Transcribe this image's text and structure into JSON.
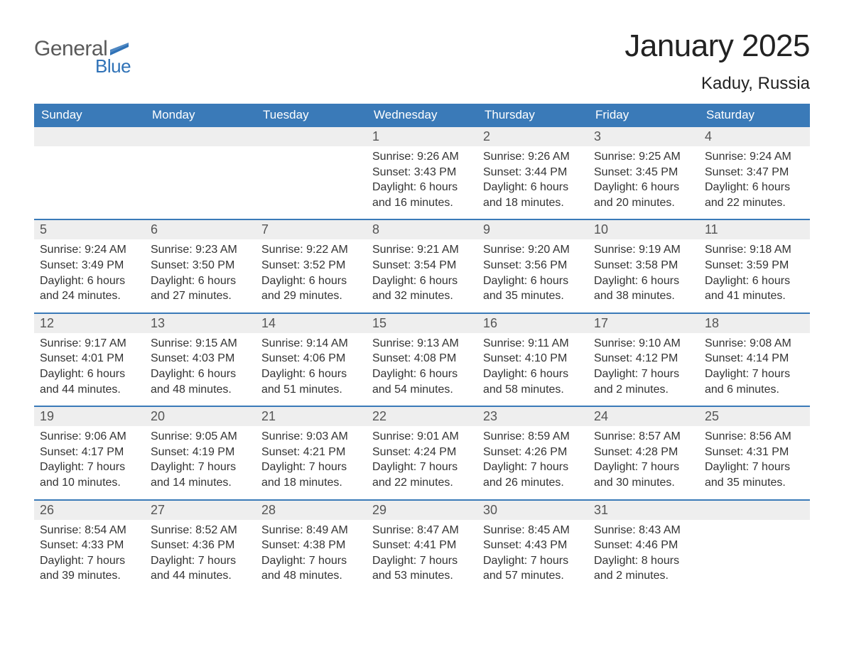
{
  "logo": {
    "text_general": "General",
    "text_blue": "Blue",
    "general_color": "#5a5a5a",
    "blue_color": "#2f72b7"
  },
  "title": "January 2025",
  "location": "Kaduy, Russia",
  "colors": {
    "header_bg": "#3a7ab8",
    "header_text": "#ffffff",
    "daynum_bg": "#eeeeee",
    "week_border": "#3a7ab8",
    "body_text": "#333333",
    "page_bg": "#ffffff"
  },
  "typography": {
    "title_fontsize": 44,
    "location_fontsize": 24,
    "dayheader_fontsize": 17,
    "daynum_fontsize": 18,
    "body_fontsize": 16,
    "font_family": "Arial"
  },
  "layout": {
    "columns": 7,
    "rows": 5
  },
  "day_headers": [
    "Sunday",
    "Monday",
    "Tuesday",
    "Wednesday",
    "Thursday",
    "Friday",
    "Saturday"
  ],
  "weeks": [
    [
      null,
      null,
      null,
      {
        "num": "1",
        "sunrise": "Sunrise: 9:26 AM",
        "sunset": "Sunset: 3:43 PM",
        "day1": "Daylight: 6 hours",
        "day2": "and 16 minutes."
      },
      {
        "num": "2",
        "sunrise": "Sunrise: 9:26 AM",
        "sunset": "Sunset: 3:44 PM",
        "day1": "Daylight: 6 hours",
        "day2": "and 18 minutes."
      },
      {
        "num": "3",
        "sunrise": "Sunrise: 9:25 AM",
        "sunset": "Sunset: 3:45 PM",
        "day1": "Daylight: 6 hours",
        "day2": "and 20 minutes."
      },
      {
        "num": "4",
        "sunrise": "Sunrise: 9:24 AM",
        "sunset": "Sunset: 3:47 PM",
        "day1": "Daylight: 6 hours",
        "day2": "and 22 minutes."
      }
    ],
    [
      {
        "num": "5",
        "sunrise": "Sunrise: 9:24 AM",
        "sunset": "Sunset: 3:49 PM",
        "day1": "Daylight: 6 hours",
        "day2": "and 24 minutes."
      },
      {
        "num": "6",
        "sunrise": "Sunrise: 9:23 AM",
        "sunset": "Sunset: 3:50 PM",
        "day1": "Daylight: 6 hours",
        "day2": "and 27 minutes."
      },
      {
        "num": "7",
        "sunrise": "Sunrise: 9:22 AM",
        "sunset": "Sunset: 3:52 PM",
        "day1": "Daylight: 6 hours",
        "day2": "and 29 minutes."
      },
      {
        "num": "8",
        "sunrise": "Sunrise: 9:21 AM",
        "sunset": "Sunset: 3:54 PM",
        "day1": "Daylight: 6 hours",
        "day2": "and 32 minutes."
      },
      {
        "num": "9",
        "sunrise": "Sunrise: 9:20 AM",
        "sunset": "Sunset: 3:56 PM",
        "day1": "Daylight: 6 hours",
        "day2": "and 35 minutes."
      },
      {
        "num": "10",
        "sunrise": "Sunrise: 9:19 AM",
        "sunset": "Sunset: 3:58 PM",
        "day1": "Daylight: 6 hours",
        "day2": "and 38 minutes."
      },
      {
        "num": "11",
        "sunrise": "Sunrise: 9:18 AM",
        "sunset": "Sunset: 3:59 PM",
        "day1": "Daylight: 6 hours",
        "day2": "and 41 minutes."
      }
    ],
    [
      {
        "num": "12",
        "sunrise": "Sunrise: 9:17 AM",
        "sunset": "Sunset: 4:01 PM",
        "day1": "Daylight: 6 hours",
        "day2": "and 44 minutes."
      },
      {
        "num": "13",
        "sunrise": "Sunrise: 9:15 AM",
        "sunset": "Sunset: 4:03 PM",
        "day1": "Daylight: 6 hours",
        "day2": "and 48 minutes."
      },
      {
        "num": "14",
        "sunrise": "Sunrise: 9:14 AM",
        "sunset": "Sunset: 4:06 PM",
        "day1": "Daylight: 6 hours",
        "day2": "and 51 minutes."
      },
      {
        "num": "15",
        "sunrise": "Sunrise: 9:13 AM",
        "sunset": "Sunset: 4:08 PM",
        "day1": "Daylight: 6 hours",
        "day2": "and 54 minutes."
      },
      {
        "num": "16",
        "sunrise": "Sunrise: 9:11 AM",
        "sunset": "Sunset: 4:10 PM",
        "day1": "Daylight: 6 hours",
        "day2": "and 58 minutes."
      },
      {
        "num": "17",
        "sunrise": "Sunrise: 9:10 AM",
        "sunset": "Sunset: 4:12 PM",
        "day1": "Daylight: 7 hours",
        "day2": "and 2 minutes."
      },
      {
        "num": "18",
        "sunrise": "Sunrise: 9:08 AM",
        "sunset": "Sunset: 4:14 PM",
        "day1": "Daylight: 7 hours",
        "day2": "and 6 minutes."
      }
    ],
    [
      {
        "num": "19",
        "sunrise": "Sunrise: 9:06 AM",
        "sunset": "Sunset: 4:17 PM",
        "day1": "Daylight: 7 hours",
        "day2": "and 10 minutes."
      },
      {
        "num": "20",
        "sunrise": "Sunrise: 9:05 AM",
        "sunset": "Sunset: 4:19 PM",
        "day1": "Daylight: 7 hours",
        "day2": "and 14 minutes."
      },
      {
        "num": "21",
        "sunrise": "Sunrise: 9:03 AM",
        "sunset": "Sunset: 4:21 PM",
        "day1": "Daylight: 7 hours",
        "day2": "and 18 minutes."
      },
      {
        "num": "22",
        "sunrise": "Sunrise: 9:01 AM",
        "sunset": "Sunset: 4:24 PM",
        "day1": "Daylight: 7 hours",
        "day2": "and 22 minutes."
      },
      {
        "num": "23",
        "sunrise": "Sunrise: 8:59 AM",
        "sunset": "Sunset: 4:26 PM",
        "day1": "Daylight: 7 hours",
        "day2": "and 26 minutes."
      },
      {
        "num": "24",
        "sunrise": "Sunrise: 8:57 AM",
        "sunset": "Sunset: 4:28 PM",
        "day1": "Daylight: 7 hours",
        "day2": "and 30 minutes."
      },
      {
        "num": "25",
        "sunrise": "Sunrise: 8:56 AM",
        "sunset": "Sunset: 4:31 PM",
        "day1": "Daylight: 7 hours",
        "day2": "and 35 minutes."
      }
    ],
    [
      {
        "num": "26",
        "sunrise": "Sunrise: 8:54 AM",
        "sunset": "Sunset: 4:33 PM",
        "day1": "Daylight: 7 hours",
        "day2": "and 39 minutes."
      },
      {
        "num": "27",
        "sunrise": "Sunrise: 8:52 AM",
        "sunset": "Sunset: 4:36 PM",
        "day1": "Daylight: 7 hours",
        "day2": "and 44 minutes."
      },
      {
        "num": "28",
        "sunrise": "Sunrise: 8:49 AM",
        "sunset": "Sunset: 4:38 PM",
        "day1": "Daylight: 7 hours",
        "day2": "and 48 minutes."
      },
      {
        "num": "29",
        "sunrise": "Sunrise: 8:47 AM",
        "sunset": "Sunset: 4:41 PM",
        "day1": "Daylight: 7 hours",
        "day2": "and 53 minutes."
      },
      {
        "num": "30",
        "sunrise": "Sunrise: 8:45 AM",
        "sunset": "Sunset: 4:43 PM",
        "day1": "Daylight: 7 hours",
        "day2": "and 57 minutes."
      },
      {
        "num": "31",
        "sunrise": "Sunrise: 8:43 AM",
        "sunset": "Sunset: 4:46 PM",
        "day1": "Daylight: 8 hours",
        "day2": "and 2 minutes."
      },
      null
    ]
  ]
}
